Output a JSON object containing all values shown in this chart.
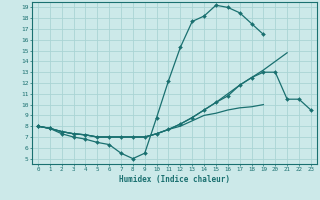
{
  "background_color": "#cce9e9",
  "grid_color": "#aad4d4",
  "line_color": "#1a7070",
  "xlabel": "Humidex (Indice chaleur)",
  "xlim": [
    -0.5,
    23.5
  ],
  "ylim": [
    4.5,
    19.5
  ],
  "yticks": [
    5,
    6,
    7,
    8,
    9,
    10,
    11,
    12,
    13,
    14,
    15,
    16,
    17,
    18,
    19
  ],
  "xticks": [
    0,
    1,
    2,
    3,
    4,
    5,
    6,
    7,
    8,
    9,
    10,
    11,
    12,
    13,
    14,
    15,
    16,
    17,
    18,
    19,
    20,
    21,
    22,
    23
  ],
  "lines": [
    {
      "x": [
        0,
        1,
        2,
        3,
        4,
        5,
        6,
        7,
        8,
        9,
        10,
        11,
        12,
        13,
        14,
        15,
        16,
        17,
        18,
        19,
        20
      ],
      "y": [
        8,
        7.8,
        7.3,
        7.0,
        6.8,
        6.5,
        6.3,
        5.5,
        5.0,
        5.5,
        8.8,
        12.2,
        15.3,
        17.7,
        18.2,
        19.2,
        19.0,
        18.5,
        17.5,
        16.5,
        null
      ],
      "marker": true
    },
    {
      "x": [
        0,
        1,
        2,
        3,
        4,
        5,
        6,
        7,
        8,
        9,
        10,
        11,
        12,
        13,
        14,
        15,
        16,
        17,
        18,
        19,
        20,
        21,
        22,
        23
      ],
      "y": [
        8,
        7.8,
        7.5,
        7.3,
        7.2,
        7.0,
        7.0,
        7.0,
        7.0,
        7.0,
        7.3,
        7.7,
        8.2,
        8.8,
        9.5,
        10.2,
        11.0,
        11.8,
        12.5,
        13.2,
        14.0,
        14.8,
        null,
        null
      ],
      "marker": false
    },
    {
      "x": [
        0,
        1,
        2,
        3,
        4,
        5,
        6,
        7,
        8,
        9,
        10,
        11,
        12,
        13,
        14,
        15,
        16,
        17,
        18,
        19,
        20,
        21,
        22,
        23
      ],
      "y": [
        8,
        7.8,
        7.5,
        7.3,
        7.2,
        7.0,
        7.0,
        7.0,
        7.0,
        7.0,
        7.3,
        7.7,
        8.2,
        8.8,
        9.5,
        10.2,
        10.8,
        11.8,
        12.5,
        13.0,
        13.0,
        10.5,
        10.5,
        9.5
      ],
      "marker": true
    },
    {
      "x": [
        0,
        1,
        2,
        3,
        4,
        5,
        6,
        7,
        8,
        9,
        10,
        11,
        12,
        13,
        14,
        15,
        16,
        17,
        18,
        19,
        20,
        21,
        22,
        23
      ],
      "y": [
        8,
        7.8,
        7.5,
        7.3,
        7.2,
        7.0,
        7.0,
        7.0,
        7.0,
        7.0,
        7.3,
        7.7,
        8.0,
        8.5,
        9.0,
        9.2,
        9.5,
        9.7,
        9.8,
        10.0,
        null,
        null,
        null,
        null
      ],
      "marker": false
    }
  ]
}
